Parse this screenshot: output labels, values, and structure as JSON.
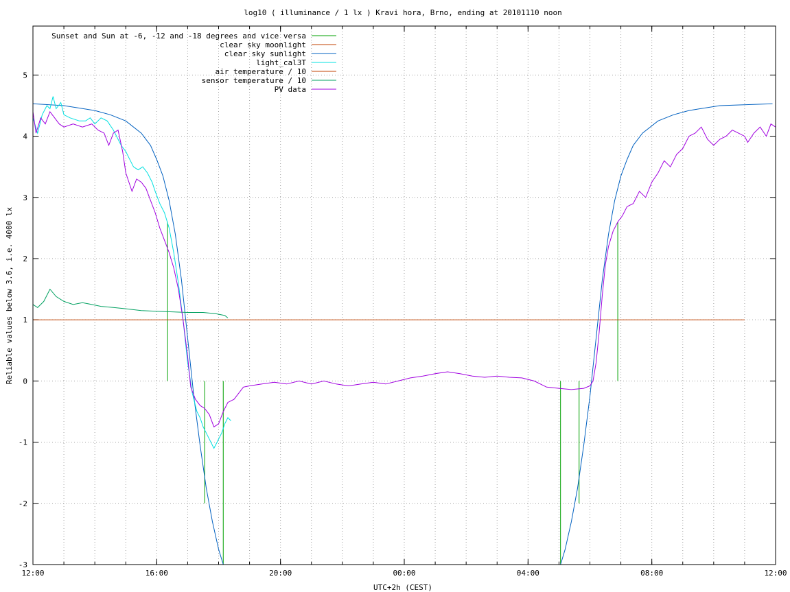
{
  "chart_data": {
    "type": "line",
    "title": "log10 ( illuminance / 1 lx ) Kravi hora, Brno, ending at 20101110 noon",
    "xlabel": "UTC+2h (CEST)",
    "ylabel": "Reliable values below 3.6, i.e. 4000 lx",
    "xlim": [
      0,
      24
    ],
    "ylim": [
      -3,
      5.8
    ],
    "grid": true,
    "legend_position": "top-left",
    "x_ticks": [
      {
        "value": 0,
        "label": "12:00"
      },
      {
        "value": 4,
        "label": "16:00"
      },
      {
        "value": 8,
        "label": "20:00"
      },
      {
        "value": 12,
        "label": "00:00"
      },
      {
        "value": 16,
        "label": "04:00"
      },
      {
        "value": 20,
        "label": "08:00"
      },
      {
        "value": 24,
        "label": "12:00"
      }
    ],
    "x_minor_step": 1,
    "y_ticks": [
      {
        "value": -3,
        "label": "-3"
      },
      {
        "value": -2,
        "label": "-2"
      },
      {
        "value": -1,
        "label": "-1"
      },
      {
        "value": 0,
        "label": "0"
      },
      {
        "value": 1,
        "label": "1"
      },
      {
        "value": 2,
        "label": "2"
      },
      {
        "value": 3,
        "label": "3"
      },
      {
        "value": 4,
        "label": "4"
      },
      {
        "value": 5,
        "label": "5"
      }
    ],
    "series": [
      {
        "name": "Sunset and Sun at -6, -12 and -18 degrees and vice versa",
        "color": "#00a000",
        "kind": "impulses",
        "points": [
          {
            "x": 4.35,
            "y": 2.6
          },
          {
            "x": 5.55,
            "y": -2.0
          },
          {
            "x": 6.15,
            "y": -3.0
          },
          {
            "x": 17.05,
            "y": -3.0
          },
          {
            "x": 17.65,
            "y": -2.0
          },
          {
            "x": 18.9,
            "y": 2.6
          }
        ]
      },
      {
        "name": "clear sky moonlight",
        "color": "#c04000",
        "kind": "line",
        "points": [
          [
            0,
            1.0
          ],
          [
            23.0,
            1.0
          ]
        ]
      },
      {
        "name": "clear sky sunlight",
        "color": "#0060c0",
        "kind": "line",
        "points": [
          [
            0,
            4.53
          ],
          [
            1,
            4.5
          ],
          [
            2,
            4.42
          ],
          [
            2.5,
            4.35
          ],
          [
            3,
            4.25
          ],
          [
            3.5,
            4.05
          ],
          [
            3.8,
            3.85
          ],
          [
            4,
            3.62
          ],
          [
            4.2,
            3.35
          ],
          [
            4.4,
            2.95
          ],
          [
            4.6,
            2.4
          ],
          [
            4.8,
            1.65
          ],
          [
            5,
            0.7
          ],
          [
            5.2,
            -0.25
          ],
          [
            5.4,
            -1.05
          ],
          [
            5.6,
            -1.75
          ],
          [
            5.8,
            -2.3
          ],
          [
            6.0,
            -2.75
          ],
          [
            6.15,
            -3.0
          ]
        ],
        "points2": [
          [
            17.05,
            -3.0
          ],
          [
            17.2,
            -2.75
          ],
          [
            17.4,
            -2.3
          ],
          [
            17.6,
            -1.75
          ],
          [
            17.8,
            -1.05
          ],
          [
            18.0,
            -0.25
          ],
          [
            18.2,
            0.7
          ],
          [
            18.4,
            1.65
          ],
          [
            18.6,
            2.4
          ],
          [
            18.8,
            2.95
          ],
          [
            19.0,
            3.35
          ],
          [
            19.2,
            3.62
          ],
          [
            19.4,
            3.85
          ],
          [
            19.7,
            4.05
          ],
          [
            20.2,
            4.25
          ],
          [
            20.7,
            4.35
          ],
          [
            21.2,
            4.42
          ],
          [
            22.2,
            4.5
          ],
          [
            23.9,
            4.53
          ]
        ]
      },
      {
        "name": "light_cal3T",
        "color": "#00e0e0",
        "kind": "line",
        "points": [
          [
            0,
            4.3
          ],
          [
            0.15,
            4.05
          ],
          [
            0.3,
            4.35
          ],
          [
            0.45,
            4.5
          ],
          [
            0.55,
            4.45
          ],
          [
            0.65,
            4.65
          ],
          [
            0.75,
            4.45
          ],
          [
            0.9,
            4.55
          ],
          [
            1.0,
            4.35
          ],
          [
            1.2,
            4.3
          ],
          [
            1.5,
            4.25
          ],
          [
            1.7,
            4.25
          ],
          [
            1.85,
            4.3
          ],
          [
            2.0,
            4.2
          ],
          [
            2.2,
            4.3
          ],
          [
            2.4,
            4.25
          ],
          [
            2.6,
            4.1
          ],
          [
            2.75,
            3.95
          ],
          [
            2.85,
            3.85
          ],
          [
            3.0,
            3.75
          ],
          [
            3.15,
            3.6
          ],
          [
            3.25,
            3.5
          ],
          [
            3.4,
            3.45
          ],
          [
            3.55,
            3.5
          ],
          [
            3.7,
            3.4
          ],
          [
            3.85,
            3.25
          ],
          [
            3.95,
            3.1
          ],
          [
            4.1,
            2.9
          ],
          [
            4.25,
            2.75
          ],
          [
            4.4,
            2.5
          ],
          [
            4.55,
            2.1
          ],
          [
            4.7,
            1.6
          ],
          [
            4.85,
            1.0
          ],
          [
            5.0,
            0.3
          ],
          [
            5.15,
            -0.2
          ],
          [
            5.3,
            -0.5
          ],
          [
            5.4,
            -0.6
          ],
          [
            5.5,
            -0.75
          ],
          [
            5.6,
            -0.85
          ],
          [
            5.75,
            -1.0
          ],
          [
            5.85,
            -1.1
          ],
          [
            6.0,
            -0.95
          ],
          [
            6.1,
            -0.85
          ],
          [
            6.2,
            -0.7
          ],
          [
            6.3,
            -0.6
          ],
          [
            6.4,
            -0.65
          ]
        ]
      },
      {
        "name": "air temperature / 10",
        "color": "#c04000",
        "kind": "line",
        "points": []
      },
      {
        "name": "sensor temperature / 10",
        "color": "#00a060",
        "kind": "line",
        "points": [
          [
            0,
            1.25
          ],
          [
            0.15,
            1.2
          ],
          [
            0.35,
            1.3
          ],
          [
            0.55,
            1.5
          ],
          [
            0.75,
            1.38
          ],
          [
            1.0,
            1.3
          ],
          [
            1.3,
            1.25
          ],
          [
            1.6,
            1.28
          ],
          [
            1.9,
            1.25
          ],
          [
            2.2,
            1.22
          ],
          [
            2.6,
            1.2
          ],
          [
            3.0,
            1.18
          ],
          [
            3.5,
            1.15
          ],
          [
            4.0,
            1.14
          ],
          [
            4.5,
            1.13
          ],
          [
            5.0,
            1.12
          ],
          [
            5.5,
            1.12
          ],
          [
            5.9,
            1.1
          ],
          [
            6.2,
            1.07
          ],
          [
            6.3,
            1.03
          ]
        ]
      },
      {
        "name": "PV data",
        "color": "#a000e0",
        "kind": "line",
        "points": [
          [
            0,
            4.4
          ],
          [
            0.1,
            4.05
          ],
          [
            0.25,
            4.3
          ],
          [
            0.4,
            4.2
          ],
          [
            0.55,
            4.4
          ],
          [
            0.7,
            4.3
          ],
          [
            0.85,
            4.2
          ],
          [
            1.0,
            4.15
          ],
          [
            1.3,
            4.2
          ],
          [
            1.6,
            4.15
          ],
          [
            1.9,
            4.2
          ],
          [
            2.1,
            4.1
          ],
          [
            2.3,
            4.05
          ],
          [
            2.45,
            3.85
          ],
          [
            2.6,
            4.05
          ],
          [
            2.75,
            4.1
          ],
          [
            2.9,
            3.75
          ],
          [
            3.0,
            3.4
          ],
          [
            3.1,
            3.25
          ],
          [
            3.2,
            3.1
          ],
          [
            3.35,
            3.3
          ],
          [
            3.5,
            3.25
          ],
          [
            3.65,
            3.15
          ],
          [
            3.8,
            2.95
          ],
          [
            3.95,
            2.75
          ],
          [
            4.1,
            2.5
          ],
          [
            4.25,
            2.3
          ],
          [
            4.4,
            2.1
          ],
          [
            4.55,
            1.85
          ],
          [
            4.7,
            1.5
          ],
          [
            4.85,
            1.0
          ],
          [
            5.0,
            0.4
          ],
          [
            5.1,
            -0.1
          ],
          [
            5.25,
            -0.3
          ],
          [
            5.4,
            -0.4
          ],
          [
            5.55,
            -0.45
          ],
          [
            5.7,
            -0.55
          ],
          [
            5.85,
            -0.75
          ],
          [
            6.0,
            -0.7
          ],
          [
            6.15,
            -0.5
          ],
          [
            6.3,
            -0.35
          ],
          [
            6.5,
            -0.3
          ],
          [
            6.65,
            -0.2
          ],
          [
            6.8,
            -0.1
          ],
          [
            7.0,
            -0.08
          ],
          [
            7.4,
            -0.05
          ],
          [
            7.8,
            -0.02
          ],
          [
            8.2,
            -0.05
          ],
          [
            8.6,
            0.0
          ],
          [
            9.0,
            -0.05
          ],
          [
            9.4,
            0.0
          ],
          [
            9.8,
            -0.05
          ],
          [
            10.2,
            -0.08
          ],
          [
            10.6,
            -0.05
          ],
          [
            11.0,
            -0.02
          ],
          [
            11.4,
            -0.05
          ],
          [
            11.8,
            0.0
          ],
          [
            12.2,
            0.05
          ],
          [
            12.6,
            0.08
          ],
          [
            13.0,
            0.12
          ],
          [
            13.4,
            0.15
          ],
          [
            13.8,
            0.12
          ],
          [
            14.2,
            0.08
          ],
          [
            14.6,
            0.06
          ],
          [
            15.0,
            0.08
          ],
          [
            15.4,
            0.06
          ],
          [
            15.8,
            0.05
          ],
          [
            16.2,
            0.0
          ],
          [
            16.6,
            -0.1
          ],
          [
            17.0,
            -0.12
          ],
          [
            17.4,
            -0.14
          ],
          [
            17.8,
            -0.12
          ],
          [
            18.0,
            -0.08
          ],
          [
            18.1,
            0.0
          ],
          [
            18.2,
            0.3
          ],
          [
            18.3,
            0.8
          ],
          [
            18.4,
            1.4
          ],
          [
            18.5,
            1.9
          ],
          [
            18.6,
            2.2
          ],
          [
            18.75,
            2.45
          ],
          [
            18.9,
            2.6
          ],
          [
            19.05,
            2.7
          ],
          [
            19.2,
            2.85
          ],
          [
            19.4,
            2.9
          ],
          [
            19.6,
            3.1
          ],
          [
            19.8,
            3.0
          ],
          [
            20.0,
            3.25
          ],
          [
            20.2,
            3.4
          ],
          [
            20.4,
            3.6
          ],
          [
            20.6,
            3.5
          ],
          [
            20.8,
            3.7
          ],
          [
            21.0,
            3.8
          ],
          [
            21.2,
            4.0
          ],
          [
            21.4,
            4.05
          ],
          [
            21.6,
            4.15
          ],
          [
            21.8,
            3.95
          ],
          [
            22.0,
            3.85
          ],
          [
            22.2,
            3.95
          ],
          [
            22.4,
            4.0
          ],
          [
            22.6,
            4.1
          ],
          [
            22.8,
            4.05
          ],
          [
            23.0,
            4.0
          ],
          [
            23.1,
            3.9
          ],
          [
            23.3,
            4.05
          ],
          [
            23.5,
            4.15
          ],
          [
            23.7,
            4.0
          ],
          [
            23.85,
            4.2
          ],
          [
            24.0,
            4.15
          ]
        ]
      }
    ]
  }
}
